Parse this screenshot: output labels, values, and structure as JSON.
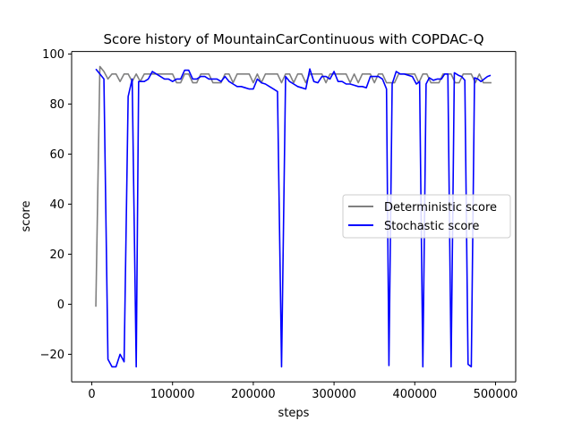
{
  "chart_data": {
    "type": "line",
    "title": "Score history of MountainCarContinuous with COPDAC-Q",
    "xlabel": "steps",
    "ylabel": "score",
    "xlim": [
      -25000,
      525000
    ],
    "ylim": [
      -31,
      101
    ],
    "xticks": [
      0,
      100000,
      200000,
      300000,
      400000,
      500000
    ],
    "xtick_labels": [
      "0",
      "100000",
      "200000",
      "300000",
      "400000",
      "500000"
    ],
    "yticks": [
      -20,
      0,
      20,
      40,
      60,
      80,
      100
    ],
    "ytick_labels": [
      "−20",
      "0",
      "20",
      "40",
      "60",
      "80",
      "100"
    ],
    "grid": false,
    "legend_position": "center-right",
    "series": [
      {
        "name": "Deterministic score",
        "color": "#808080",
        "points": [
          [
            5000,
            -1
          ],
          [
            10000,
            95
          ],
          [
            15000,
            93
          ],
          [
            20000,
            90
          ],
          [
            25000,
            92
          ],
          [
            30000,
            92
          ],
          [
            35000,
            89
          ],
          [
            40000,
            92
          ],
          [
            45000,
            92
          ],
          [
            50000,
            89
          ],
          [
            55000,
            92
          ],
          [
            60000,
            89
          ],
          [
            65000,
            92
          ],
          [
            70000,
            92
          ],
          [
            75000,
            92
          ],
          [
            80000,
            92
          ],
          [
            85000,
            92
          ],
          [
            90000,
            92
          ],
          [
            95000,
            92
          ],
          [
            100000,
            92
          ],
          [
            105000,
            88.5
          ],
          [
            110000,
            88.5
          ],
          [
            115000,
            92
          ],
          [
            120000,
            92
          ],
          [
            125000,
            88.5
          ],
          [
            130000,
            88.5
          ],
          [
            135000,
            92
          ],
          [
            140000,
            92
          ],
          [
            145000,
            92
          ],
          [
            150000,
            88.5
          ],
          [
            155000,
            88.5
          ],
          [
            160000,
            88.5
          ],
          [
            165000,
            92
          ],
          [
            170000,
            92
          ],
          [
            175000,
            88.5
          ],
          [
            180000,
            92
          ],
          [
            185000,
            92
          ],
          [
            190000,
            92
          ],
          [
            195000,
            92
          ],
          [
            200000,
            88.5
          ],
          [
            205000,
            92
          ],
          [
            210000,
            88.5
          ],
          [
            215000,
            92
          ],
          [
            220000,
            92
          ],
          [
            225000,
            92
          ],
          [
            230000,
            92
          ],
          [
            235000,
            88.5
          ],
          [
            240000,
            92
          ],
          [
            245000,
            92
          ],
          [
            250000,
            88.5
          ],
          [
            255000,
            92
          ],
          [
            260000,
            92
          ],
          [
            265000,
            88.5
          ],
          [
            270000,
            92
          ],
          [
            275000,
            92
          ],
          [
            280000,
            92
          ],
          [
            285000,
            92
          ],
          [
            290000,
            88.5
          ],
          [
            295000,
            92
          ],
          [
            300000,
            92
          ],
          [
            305000,
            92
          ],
          [
            310000,
            92
          ],
          [
            315000,
            92
          ],
          [
            320000,
            88.5
          ],
          [
            325000,
            92
          ],
          [
            330000,
            88.5
          ],
          [
            335000,
            92
          ],
          [
            340000,
            92
          ],
          [
            345000,
            92
          ],
          [
            350000,
            88.5
          ],
          [
            355000,
            92
          ],
          [
            360000,
            92
          ],
          [
            365000,
            88.5
          ],
          [
            370000,
            88.5
          ],
          [
            375000,
            88.5
          ],
          [
            380000,
            92
          ],
          [
            385000,
            92
          ],
          [
            390000,
            92
          ],
          [
            395000,
            92
          ],
          [
            400000,
            92
          ],
          [
            405000,
            88.5
          ],
          [
            410000,
            92
          ],
          [
            415000,
            92
          ],
          [
            420000,
            88.5
          ],
          [
            425000,
            88.5
          ],
          [
            430000,
            88.5
          ],
          [
            435000,
            92
          ],
          [
            440000,
            92
          ],
          [
            445000,
            92
          ],
          [
            450000,
            88.5
          ],
          [
            455000,
            88.5
          ],
          [
            460000,
            92
          ],
          [
            465000,
            92
          ],
          [
            470000,
            92
          ],
          [
            475000,
            88.5
          ],
          [
            480000,
            92
          ],
          [
            485000,
            88.5
          ],
          [
            490000,
            88.5
          ],
          [
            495000,
            88.5
          ]
        ]
      },
      {
        "name": "Stochastic score",
        "color": "#0000ff",
        "points": [
          [
            5000,
            94
          ],
          [
            10000,
            92
          ],
          [
            15000,
            90
          ],
          [
            20000,
            -22
          ],
          [
            25000,
            -25
          ],
          [
            30000,
            -25
          ],
          [
            35000,
            -20
          ],
          [
            40000,
            -23
          ],
          [
            45000,
            83
          ],
          [
            50000,
            90
          ],
          [
            55000,
            -25
          ],
          [
            58000,
            89
          ],
          [
            65000,
            89
          ],
          [
            70000,
            90
          ],
          [
            75000,
            93
          ],
          [
            80000,
            92
          ],
          [
            85000,
            91
          ],
          [
            90000,
            90
          ],
          [
            95000,
            90
          ],
          [
            100000,
            89
          ],
          [
            105000,
            90
          ],
          [
            110000,
            90
          ],
          [
            115000,
            93.5
          ],
          [
            120000,
            93.5
          ],
          [
            125000,
            90
          ],
          [
            130000,
            90
          ],
          [
            135000,
            91
          ],
          [
            140000,
            91
          ],
          [
            145000,
            90
          ],
          [
            150000,
            90
          ],
          [
            155000,
            90
          ],
          [
            160000,
            89
          ],
          [
            165000,
            91
          ],
          [
            170000,
            89
          ],
          [
            175000,
            88
          ],
          [
            180000,
            87
          ],
          [
            185000,
            87
          ],
          [
            190000,
            86.5
          ],
          [
            195000,
            86
          ],
          [
            200000,
            86
          ],
          [
            205000,
            90
          ],
          [
            210000,
            88.5
          ],
          [
            215000,
            88
          ],
          [
            220000,
            87
          ],
          [
            225000,
            86
          ],
          [
            230000,
            85
          ],
          [
            235000,
            -25
          ],
          [
            240000,
            91
          ],
          [
            245000,
            89
          ],
          [
            250000,
            88
          ],
          [
            255000,
            87
          ],
          [
            260000,
            86.5
          ],
          [
            265000,
            86
          ],
          [
            270000,
            94
          ],
          [
            275000,
            89
          ],
          [
            280000,
            88.5
          ],
          [
            285000,
            91
          ],
          [
            290000,
            91
          ],
          [
            295000,
            90
          ],
          [
            300000,
            93
          ],
          [
            305000,
            89
          ],
          [
            310000,
            89
          ],
          [
            315000,
            88
          ],
          [
            320000,
            88
          ],
          [
            325000,
            87.5
          ],
          [
            330000,
            87
          ],
          [
            335000,
            87
          ],
          [
            340000,
            86.5
          ],
          [
            345000,
            91
          ],
          [
            350000,
            91
          ],
          [
            355000,
            91
          ],
          [
            360000,
            90
          ],
          [
            365000,
            86
          ],
          [
            368000,
            -24.5
          ],
          [
            372000,
            88
          ],
          [
            377000,
            93
          ],
          [
            382000,
            92
          ],
          [
            387000,
            92
          ],
          [
            392000,
            91.5
          ],
          [
            397000,
            91
          ],
          [
            402000,
            88
          ],
          [
            406000,
            89
          ],
          [
            410000,
            -25
          ],
          [
            414000,
            88
          ],
          [
            418000,
            90.5
          ],
          [
            423000,
            89.5
          ],
          [
            428000,
            90
          ],
          [
            433000,
            90
          ],
          [
            437000,
            92
          ],
          [
            441000,
            92
          ],
          [
            445000,
            -25
          ],
          [
            449000,
            92.5
          ],
          [
            454000,
            91.5
          ],
          [
            458000,
            91
          ],
          [
            462000,
            89.5
          ],
          [
            466000,
            -24
          ],
          [
            470000,
            -25
          ],
          [
            474000,
            90.5
          ],
          [
            478000,
            90
          ],
          [
            482000,
            89
          ],
          [
            486000,
            90
          ],
          [
            490000,
            91
          ],
          [
            494000,
            91.5
          ]
        ]
      }
    ]
  }
}
